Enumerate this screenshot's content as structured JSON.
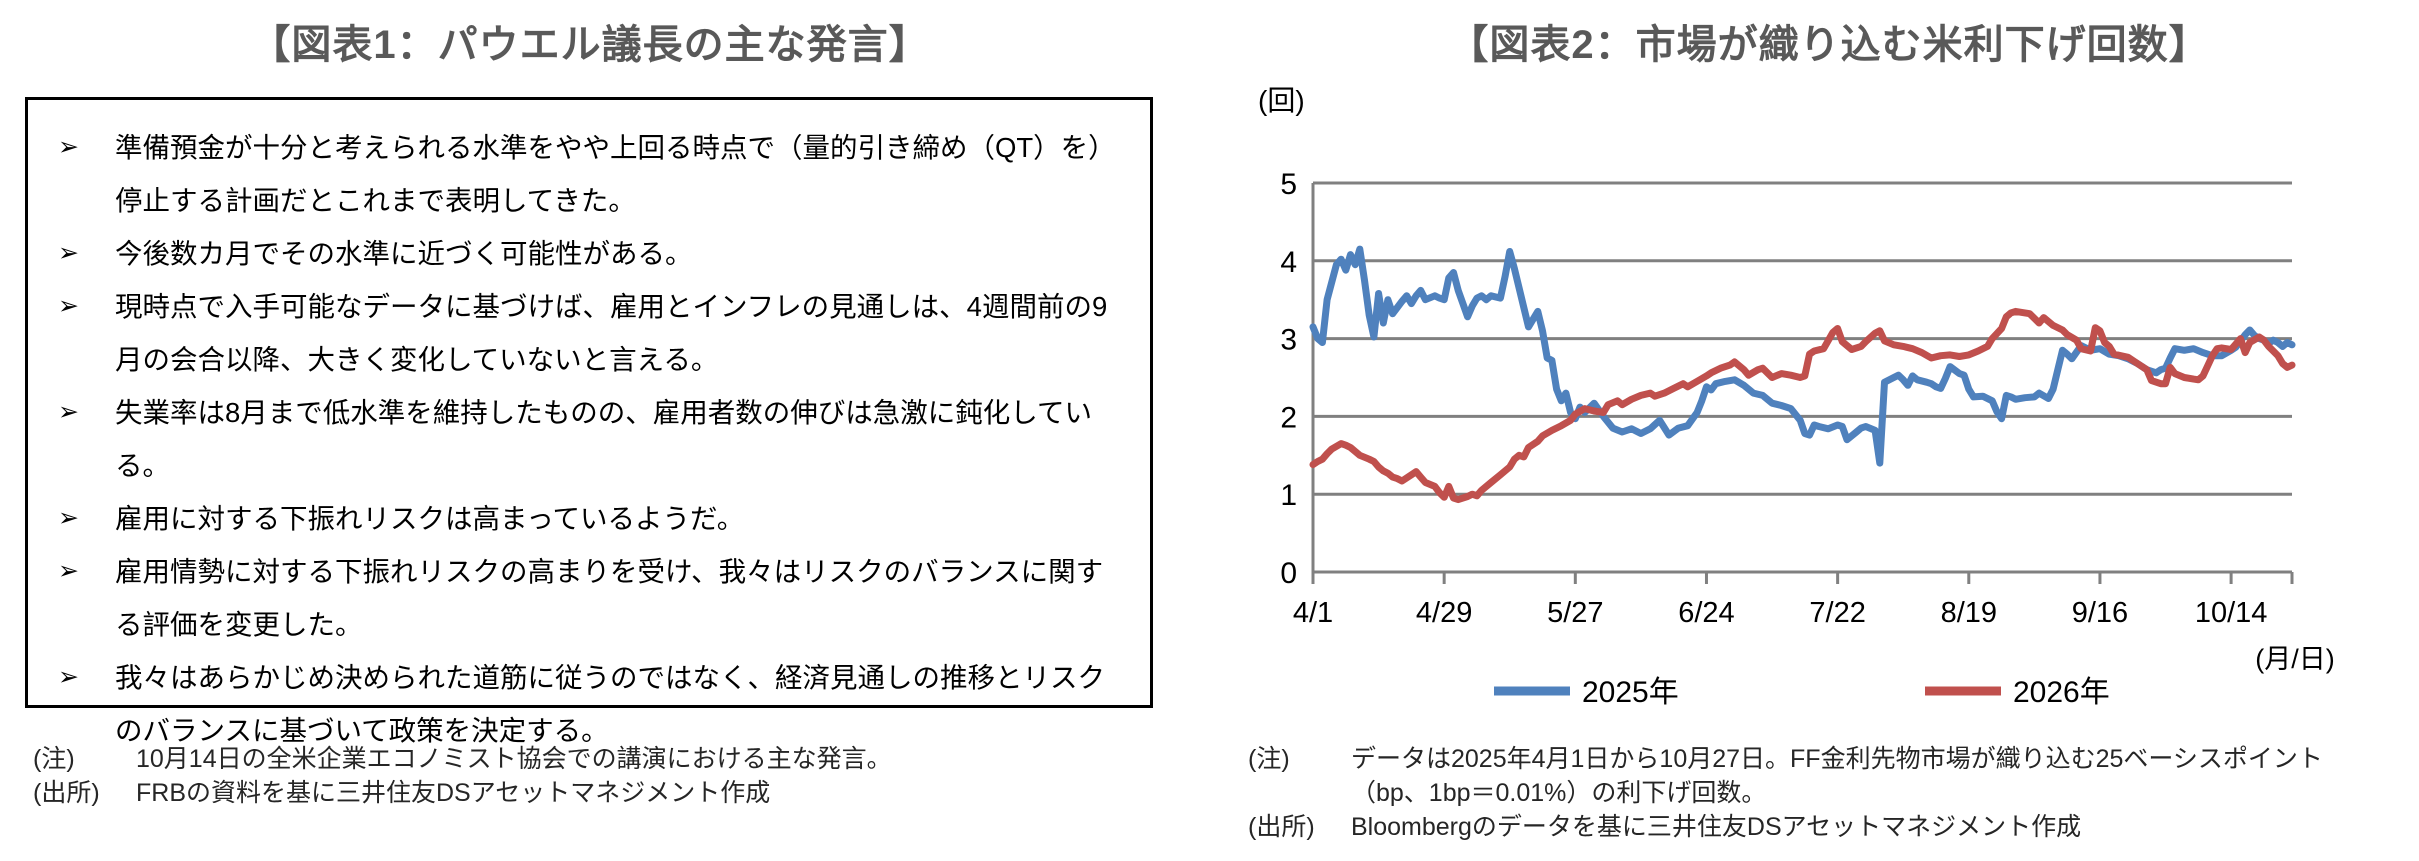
{
  "left_panel": {
    "title": "【図表1：パウエル議長の主な発言】",
    "bullet_marker": "➢",
    "bullets": [
      "準備預金が十分と考えられる水準をやや上回る時点で（量的引き締め（QT）を）停止する計画だとこれまで表明してきた。",
      "今後数カ月でその水準に近づく可能性がある。",
      "現時点で入手可能なデータに基づけば、雇用とインフレの見通しは、4週間前の9月の会合以降、大きく変化していないと言える。",
      "失業率は8月まで低水準を維持したものの、雇用者数の伸びは急激に鈍化している。",
      "雇用に対する下振れリスクは高まっているようだ。",
      "雇用情勢に対する下振れリスクの高まりを受け、我々はリスクのバランスに関する評価を変更した。",
      "我々はあらかじめ決められた道筋に従うのではなく、経済見通しの推移とリスクのバランスに基づいて政策を決定する。"
    ],
    "notes": [
      {
        "label": "(注)",
        "lines": [
          "10月14日の全米企業エコノミスト協会での講演における主な発言。"
        ]
      },
      {
        "label": "(出所)",
        "lines": [
          "FRBの資料を基に三井住友DSアセットマネジメント作成"
        ]
      }
    ]
  },
  "right_panel": {
    "title": "【図表2：市場が織り込む米利下げ回数】",
    "notes": [
      {
        "label": "(注)",
        "lines": [
          "データは2025年4月1日から10月27日。FF金利先物市場が織り込む25ベーシスポイント",
          "（bp、1bp＝0.01%）の利下げ回数。"
        ]
      },
      {
        "label": "(出所)",
        "lines": [
          "Bloombergのデータを基に三井住友DSアセットマネジメント作成"
        ]
      }
    ]
  },
  "chart_data": {
    "type": "line",
    "y_axis_unit": "(回)",
    "x_axis_unit": "(月/日)",
    "ylim": [
      0,
      5
    ],
    "y_ticks": [
      0,
      1,
      2,
      3,
      4,
      5
    ],
    "x_range_days": [
      0,
      209
    ],
    "x_tick_days": [
      0,
      28,
      56,
      84,
      112,
      140,
      168,
      196
    ],
    "x_tick_labels": [
      "4/1",
      "4/29",
      "5/27",
      "6/24",
      "7/22",
      "8/19",
      "9/16",
      "10/14"
    ],
    "grid_on": true,
    "grid_color": "#808080",
    "legend_position": "bottom",
    "series": [
      {
        "name": "2025年",
        "color": "#4F81BD",
        "points": [
          [
            0,
            3.15
          ],
          [
            1,
            3.0
          ],
          [
            2,
            2.95
          ],
          [
            3,
            3.5
          ],
          [
            5,
            3.95
          ],
          [
            6,
            4.02
          ],
          [
            7,
            3.88
          ],
          [
            8,
            4.08
          ],
          [
            9,
            3.95
          ],
          [
            10,
            4.15
          ],
          [
            11,
            3.75
          ],
          [
            12,
            3.3
          ],
          [
            13,
            3.02
          ],
          [
            14,
            3.58
          ],
          [
            15,
            3.2
          ],
          [
            16,
            3.5
          ],
          [
            17,
            3.32
          ],
          [
            19,
            3.48
          ],
          [
            20,
            3.55
          ],
          [
            21,
            3.45
          ],
          [
            22,
            3.55
          ],
          [
            23,
            3.62
          ],
          [
            24,
            3.5
          ],
          [
            26,
            3.55
          ],
          [
            27,
            3.52
          ],
          [
            28,
            3.5
          ],
          [
            29,
            3.78
          ],
          [
            30,
            3.85
          ],
          [
            31,
            3.62
          ],
          [
            32,
            3.45
          ],
          [
            33,
            3.28
          ],
          [
            34,
            3.42
          ],
          [
            35,
            3.52
          ],
          [
            36,
            3.55
          ],
          [
            37,
            3.5
          ],
          [
            38,
            3.55
          ],
          [
            40,
            3.52
          ],
          [
            41,
            3.8
          ],
          [
            42,
            4.12
          ],
          [
            43,
            3.9
          ],
          [
            44,
            3.65
          ],
          [
            45,
            3.4
          ],
          [
            46,
            3.15
          ],
          [
            47,
            3.25
          ],
          [
            48,
            3.35
          ],
          [
            49,
            3.1
          ],
          [
            50,
            2.75
          ],
          [
            51,
            2.72
          ],
          [
            52,
            2.35
          ],
          [
            53,
            2.2
          ],
          [
            54,
            2.3
          ],
          [
            55,
            2.05
          ],
          [
            56,
            1.97
          ],
          [
            57,
            2.12
          ],
          [
            58,
            2.05
          ],
          [
            60,
            2.17
          ],
          [
            62,
            2.0
          ],
          [
            64,
            1.85
          ],
          [
            66,
            1.8
          ],
          [
            68,
            1.84
          ],
          [
            70,
            1.78
          ],
          [
            72,
            1.84
          ],
          [
            74,
            1.95
          ],
          [
            76,
            1.76
          ],
          [
            78,
            1.85
          ],
          [
            80,
            1.88
          ],
          [
            82,
            2.05
          ],
          [
            83,
            2.2
          ],
          [
            84,
            2.38
          ],
          [
            85,
            2.34
          ],
          [
            86,
            2.42
          ],
          [
            88,
            2.45
          ],
          [
            90,
            2.47
          ],
          [
            92,
            2.4
          ],
          [
            94,
            2.3
          ],
          [
            96,
            2.27
          ],
          [
            98,
            2.17
          ],
          [
            100,
            2.14
          ],
          [
            102,
            2.1
          ],
          [
            104,
            1.95
          ],
          [
            105,
            1.78
          ],
          [
            106,
            1.76
          ],
          [
            107,
            1.89
          ],
          [
            108,
            1.87
          ],
          [
            110,
            1.84
          ],
          [
            112,
            1.89
          ],
          [
            113,
            1.87
          ],
          [
            114,
            1.7
          ],
          [
            116,
            1.8
          ],
          [
            117,
            1.85
          ],
          [
            118,
            1.87
          ],
          [
            120,
            1.82
          ],
          [
            121,
            1.4
          ],
          [
            122,
            2.44
          ],
          [
            124,
            2.5
          ],
          [
            125,
            2.53
          ],
          [
            126,
            2.47
          ],
          [
            127,
            2.4
          ],
          [
            128,
            2.52
          ],
          [
            129,
            2.47
          ],
          [
            131,
            2.44
          ],
          [
            132,
            2.42
          ],
          [
            133,
            2.38
          ],
          [
            134,
            2.36
          ],
          [
            135,
            2.49
          ],
          [
            136,
            2.64
          ],
          [
            138,
            2.55
          ],
          [
            139,
            2.53
          ],
          [
            140,
            2.35
          ],
          [
            141,
            2.25
          ],
          [
            143,
            2.26
          ],
          [
            145,
            2.2
          ],
          [
            146,
            2.06
          ],
          [
            147,
            1.97
          ],
          [
            148,
            2.27
          ],
          [
            149,
            2.25
          ],
          [
            150,
            2.22
          ],
          [
            152,
            2.24
          ],
          [
            154,
            2.25
          ],
          [
            155,
            2.3
          ],
          [
            157,
            2.23
          ],
          [
            158,
            2.35
          ],
          [
            159,
            2.6
          ],
          [
            160,
            2.85
          ],
          [
            161,
            2.8
          ],
          [
            162,
            2.74
          ],
          [
            164,
            2.91
          ],
          [
            166,
            2.85
          ],
          [
            168,
            2.87
          ],
          [
            170,
            2.8
          ],
          [
            172,
            2.78
          ],
          [
            174,
            2.74
          ],
          [
            176,
            2.68
          ],
          [
            178,
            2.6
          ],
          [
            180,
            2.56
          ],
          [
            181,
            2.6
          ],
          [
            182,
            2.62
          ],
          [
            183,
            2.75
          ],
          [
            184,
            2.87
          ],
          [
            186,
            2.85
          ],
          [
            188,
            2.87
          ],
          [
            190,
            2.82
          ],
          [
            192,
            2.78
          ],
          [
            194,
            2.78
          ],
          [
            196,
            2.85
          ],
          [
            197,
            2.89
          ],
          [
            198,
            2.97
          ],
          [
            199,
            3.05
          ],
          [
            200,
            3.11
          ],
          [
            201,
            3.04
          ],
          [
            202,
            3.0
          ],
          [
            203,
            2.98
          ],
          [
            204,
            2.94
          ],
          [
            205,
            2.98
          ],
          [
            206,
            2.95
          ],
          [
            207,
            2.9
          ],
          [
            208,
            2.95
          ],
          [
            209,
            2.92
          ]
        ]
      },
      {
        "name": "2026年",
        "color": "#C0504D",
        "points": [
          [
            0,
            1.38
          ],
          [
            1,
            1.42
          ],
          [
            2,
            1.45
          ],
          [
            3,
            1.52
          ],
          [
            4,
            1.58
          ],
          [
            6,
            1.65
          ],
          [
            7,
            1.63
          ],
          [
            8,
            1.6
          ],
          [
            9,
            1.55
          ],
          [
            10,
            1.5
          ],
          [
            12,
            1.45
          ],
          [
            13,
            1.42
          ],
          [
            14,
            1.35
          ],
          [
            15,
            1.3
          ],
          [
            16,
            1.27
          ],
          [
            17,
            1.22
          ],
          [
            18,
            1.2
          ],
          [
            19,
            1.17
          ],
          [
            21,
            1.25
          ],
          [
            22,
            1.29
          ],
          [
            23,
            1.22
          ],
          [
            24,
            1.15
          ],
          [
            26,
            1.1
          ],
          [
            27,
            1.02
          ],
          [
            28,
            0.96
          ],
          [
            29,
            1.1
          ],
          [
            30,
            0.95
          ],
          [
            31,
            0.93
          ],
          [
            33,
            0.97
          ],
          [
            34,
            1.0
          ],
          [
            35,
            0.98
          ],
          [
            36,
            1.05
          ],
          [
            38,
            1.15
          ],
          [
            40,
            1.25
          ],
          [
            42,
            1.35
          ],
          [
            43,
            1.45
          ],
          [
            44,
            1.5
          ],
          [
            45,
            1.48
          ],
          [
            46,
            1.6
          ],
          [
            48,
            1.68
          ],
          [
            49,
            1.75
          ],
          [
            51,
            1.82
          ],
          [
            53,
            1.88
          ],
          [
            55,
            1.95
          ],
          [
            56,
            2.03
          ],
          [
            58,
            2.1
          ],
          [
            60,
            2.07
          ],
          [
            62,
            2.05
          ],
          [
            63,
            2.15
          ],
          [
            65,
            2.2
          ],
          [
            66,
            2.15
          ],
          [
            68,
            2.22
          ],
          [
            70,
            2.27
          ],
          [
            72,
            2.3
          ],
          [
            73,
            2.26
          ],
          [
            75,
            2.3
          ],
          [
            77,
            2.36
          ],
          [
            79,
            2.42
          ],
          [
            80,
            2.38
          ],
          [
            82,
            2.45
          ],
          [
            84,
            2.52
          ],
          [
            85,
            2.56
          ],
          [
            87,
            2.62
          ],
          [
            89,
            2.66
          ],
          [
            90,
            2.7
          ],
          [
            92,
            2.6
          ],
          [
            93,
            2.53
          ],
          [
            95,
            2.6
          ],
          [
            96,
            2.62
          ],
          [
            98,
            2.5
          ],
          [
            100,
            2.55
          ],
          [
            102,
            2.53
          ],
          [
            104,
            2.5
          ],
          [
            105,
            2.52
          ],
          [
            106,
            2.8
          ],
          [
            107,
            2.84
          ],
          [
            109,
            2.87
          ],
          [
            111,
            3.08
          ],
          [
            112,
            3.13
          ],
          [
            113,
            2.96
          ],
          [
            115,
            2.86
          ],
          [
            117,
            2.9
          ],
          [
            118,
            2.96
          ],
          [
            120,
            3.07
          ],
          [
            121,
            3.1
          ],
          [
            122,
            2.97
          ],
          [
            124,
            2.92
          ],
          [
            126,
            2.9
          ],
          [
            128,
            2.87
          ],
          [
            130,
            2.82
          ],
          [
            132,
            2.75
          ],
          [
            134,
            2.78
          ],
          [
            136,
            2.79
          ],
          [
            138,
            2.77
          ],
          [
            140,
            2.79
          ],
          [
            142,
            2.84
          ],
          [
            144,
            2.9
          ],
          [
            145,
            3.0
          ],
          [
            147,
            3.13
          ],
          [
            148,
            3.28
          ],
          [
            149,
            3.33
          ],
          [
            150,
            3.35
          ],
          [
            152,
            3.33
          ],
          [
            153,
            3.32
          ],
          [
            155,
            3.2
          ],
          [
            156,
            3.27
          ],
          [
            158,
            3.17
          ],
          [
            160,
            3.11
          ],
          [
            161,
            3.05
          ],
          [
            163,
            2.98
          ],
          [
            164,
            2.87
          ],
          [
            166,
            2.84
          ],
          [
            167,
            3.14
          ],
          [
            168,
            3.1
          ],
          [
            169,
            2.95
          ],
          [
            170,
            2.9
          ],
          [
            171,
            2.8
          ],
          [
            174,
            2.76
          ],
          [
            176,
            2.68
          ],
          [
            178,
            2.6
          ],
          [
            179,
            2.46
          ],
          [
            181,
            2.42
          ],
          [
            182,
            2.42
          ],
          [
            183,
            2.63
          ],
          [
            184,
            2.55
          ],
          [
            186,
            2.5
          ],
          [
            188,
            2.48
          ],
          [
            189,
            2.47
          ],
          [
            190,
            2.52
          ],
          [
            192,
            2.78
          ],
          [
            193,
            2.87
          ],
          [
            194,
            2.88
          ],
          [
            196,
            2.86
          ],
          [
            198,
            3.0
          ],
          [
            199,
            2.82
          ],
          [
            200,
            2.95
          ],
          [
            202,
            3.02
          ],
          [
            203,
            2.98
          ],
          [
            204,
            2.9
          ],
          [
            206,
            2.78
          ],
          [
            207,
            2.68
          ],
          [
            208,
            2.63
          ],
          [
            209,
            2.66
          ]
        ]
      }
    ]
  }
}
